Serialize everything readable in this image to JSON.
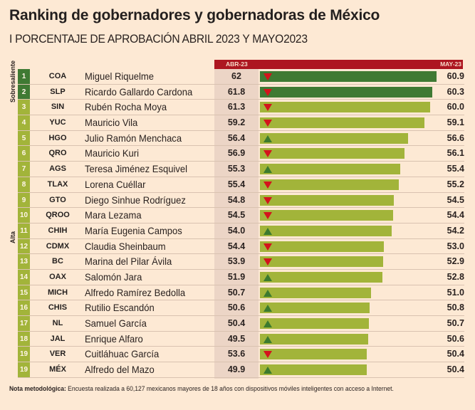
{
  "title": "Ranking de gobernadores y gobernadoras de México",
  "subtitle": "I PORCENTAJE DE APROBACIÓN ABRIL 2023 Y MAYO2023",
  "header": {
    "left": "ABR-23",
    "right": "MAY-23"
  },
  "categories_side": [
    {
      "label": "Sobresaliente",
      "ranks": [
        1,
        2
      ]
    },
    {
      "label": "Alta",
      "ranks": [
        3,
        19
      ]
    }
  ],
  "colors": {
    "sobresaliente": "#3f7a33",
    "alta": "#a2b43a",
    "header": "#ad1620",
    "down": "#d3141c",
    "up": "#3c7a2e",
    "background": "#fde9d4"
  },
  "note": {
    "label": "Nota metodológica:",
    "text": " Encuesta realizada a 60,127 mexicanos mayores de 18 años con dispositivos móviles inteligentes con acceso a Internet."
  },
  "chart_data": {
    "type": "bar",
    "title": "Ranking de gobernadores y gobernadoras de México",
    "subtitle": "I PORCENTAJE DE APROBACIÓN ABRIL 2023 Y MAYO2023",
    "series_names": [
      "ABR-23",
      "MAY-23"
    ],
    "rows": [
      {
        "rank": "1",
        "state": "COA",
        "name": "Miguel Riquelme",
        "abr": "62",
        "may": "60.9",
        "trend": "down",
        "level": "sobresaliente"
      },
      {
        "rank": "2",
        "state": "SLP",
        "name": "Ricardo Gallardo Cardona",
        "abr": "61.8",
        "may": "60.3",
        "trend": "down",
        "level": "sobresaliente"
      },
      {
        "rank": "3",
        "state": "SIN",
        "name": "Rubén Rocha Moya",
        "abr": "61.3",
        "may": "60.0",
        "trend": "down",
        "level": "alta"
      },
      {
        "rank": "4",
        "state": "YUC",
        "name": "Mauricio Vila",
        "abr": "59.2",
        "may": "59.1",
        "trend": "down",
        "level": "alta"
      },
      {
        "rank": "5",
        "state": "HGO",
        "name": "Julio Ramón Menchaca",
        "abr": "56.4",
        "may": "56.6",
        "trend": "up",
        "level": "alta"
      },
      {
        "rank": "6",
        "state": "QRO",
        "name": "Mauricio Kuri",
        "abr": "56.9",
        "may": "56.1",
        "trend": "down",
        "level": "alta"
      },
      {
        "rank": "7",
        "state": "AGS",
        "name": "Teresa Jiménez Esquivel",
        "abr": "55.3",
        "may": "55.4",
        "trend": "up",
        "level": "alta"
      },
      {
        "rank": "8",
        "state": "TLAX",
        "name": "Lorena Cuéllar",
        "abr": "55.4",
        "may": "55.2",
        "trend": "down",
        "level": "alta"
      },
      {
        "rank": "9",
        "state": "GTO",
        "name": "Diego Sinhue Rodríguez",
        "abr": "54.8",
        "may": "54.5",
        "trend": "down",
        "level": "alta"
      },
      {
        "rank": "10",
        "state": "QROO",
        "name": "Mara Lezama",
        "abr": "54.5",
        "may": "54.4",
        "trend": "down",
        "level": "alta"
      },
      {
        "rank": "11",
        "state": "CHIH",
        "name": "María Eugenia Campos",
        "abr": "54.0",
        "may": "54.2",
        "trend": "up",
        "level": "alta"
      },
      {
        "rank": "12",
        "state": "CDMX",
        "name": "Claudia Sheinbaum",
        "abr": "54.4",
        "may": "53.0",
        "trend": "down",
        "level": "alta"
      },
      {
        "rank": "13",
        "state": "BC",
        "name": "Marina del Pilar Ávila",
        "abr": "53.9",
        "may": "52.9",
        "trend": "down",
        "level": "alta"
      },
      {
        "rank": "14",
        "state": "OAX",
        "name": "Salomón Jara",
        "abr": "51.9",
        "may": "52.8",
        "trend": "up",
        "level": "alta"
      },
      {
        "rank": "15",
        "state": "MICH",
        "name": "Alfredo Ramírez Bedolla",
        "abr": "50.7",
        "may": "51.0",
        "trend": "up",
        "level": "alta"
      },
      {
        "rank": "16",
        "state": "CHIS",
        "name": "Rutilio Escandón",
        "abr": "50.6",
        "may": "50.8",
        "trend": "up",
        "level": "alta"
      },
      {
        "rank": "17",
        "state": "NL",
        "name": "Samuel García",
        "abr": "50.4",
        "may": "50.7",
        "trend": "up",
        "level": "alta"
      },
      {
        "rank": "18",
        "state": "JAL",
        "name": "Enrique Alfaro",
        "abr": "49.5",
        "may": "50.6",
        "trend": "up",
        "level": "alta"
      },
      {
        "rank": "19",
        "state": "VER",
        "name": "Cuitláhuac García",
        "abr": "53.6",
        "may": "50.4",
        "trend": "down",
        "level": "alta"
      },
      {
        "rank": "19",
        "state": "MÉX",
        "name": "Alfredo del Mazo",
        "abr": "49.9",
        "may": "50.4",
        "trend": "up",
        "level": "alta"
      }
    ]
  }
}
